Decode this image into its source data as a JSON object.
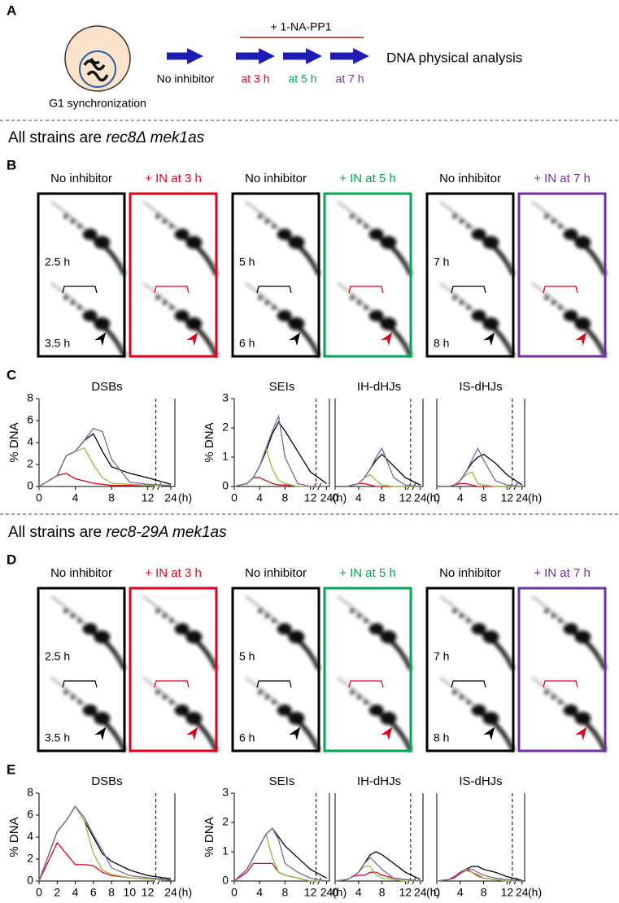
{
  "panel_a": {
    "label": "A",
    "cell_caption": "G1 synchronization",
    "drug": "+ 1-NA-PP1",
    "steps": [
      {
        "text": "No inhibitor",
        "color": "#000000"
      },
      {
        "text": "at 3 h",
        "color": "#e3001b"
      },
      {
        "text": "at 5 h",
        "color": "#00a650"
      },
      {
        "text": "at 7 h",
        "color": "#7030a0"
      }
    ],
    "result": "DNA physical analysis"
  },
  "sections": [
    {
      "prefix": "All strains are ",
      "genotype": "rec8Δ mek1as",
      "blot_label": "B",
      "chart_label": "C",
      "groups": [
        {
          "control": "No inhibitor",
          "treated": "+ IN at 3 h",
          "color": "#e3001b",
          "times": [
            "2.5 h",
            "3.5 h"
          ]
        },
        {
          "control": "No inhibitor",
          "treated": "+ IN at 5 h",
          "color": "#00a650",
          "times": [
            "5 h",
            "6 h"
          ]
        },
        {
          "control": "No inhibitor",
          "treated": "+ IN at 7 h",
          "color": "#7030a0",
          "times": [
            "7 h",
            "8 h"
          ]
        }
      ]
    },
    {
      "prefix": "All strains are ",
      "genotype": "rec8-29A mek1as",
      "blot_label": "D",
      "chart_label": "E",
      "groups": [
        {
          "control": "No inhibitor",
          "treated": "+ IN at 3 h",
          "color": "#e3001b",
          "times": [
            "2.5 h",
            "3.5 h"
          ]
        },
        {
          "control": "No inhibitor",
          "treated": "+ IN at 5 h",
          "color": "#00a650",
          "times": [
            "5 h",
            "6 h"
          ]
        },
        {
          "control": "No inhibitor",
          "treated": "+ IN at 7 h",
          "color": "#7030a0",
          "times": [
            "7 h",
            "8 h"
          ]
        }
      ]
    }
  ],
  "chart_data": [
    {
      "type": "line",
      "title": "DSBs",
      "ylabel": "% DNA",
      "xlabel": "(h)",
      "x": [
        0,
        2,
        3,
        4,
        5,
        6,
        7,
        8,
        10,
        12,
        24
      ],
      "xlim": [
        0,
        24
      ],
      "xticks": [
        0,
        4,
        8,
        12,
        24
      ],
      "ylim": [
        0,
        8
      ],
      "yticks": [
        0,
        2,
        4,
        6,
        8
      ],
      "series": [
        {
          "color": "#000000",
          "values": [
            0,
            1,
            2.8,
            3.2,
            4.2,
            4.8,
            3.2,
            1.8,
            1.2,
            0.8,
            0.2
          ]
        },
        {
          "color": "#e3001b",
          "values": [
            0,
            1,
            1.2,
            0.7,
            0.5,
            0.3,
            0.2,
            0.1,
            0.1,
            0.1,
            0.1
          ]
        },
        {
          "color": "#8cbf3f",
          "values": [
            0,
            1,
            2.8,
            3.2,
            3.5,
            2,
            0.8,
            0.3,
            0.2,
            0.1,
            0.1
          ]
        },
        {
          "color": "#8064a2",
          "values": [
            0,
            1,
            2.8,
            3.2,
            4.2,
            5.3,
            5,
            2.5,
            0.4,
            0.2,
            0.1
          ]
        }
      ]
    },
    {
      "type": "line",
      "title": "SEIs",
      "ylabel": "% DNA",
      "xlabel": "(h)",
      "x": [
        0,
        2,
        3,
        4,
        5,
        6,
        7,
        8,
        10,
        12,
        24
      ],
      "xlim": [
        0,
        24
      ],
      "xticks": [
        0,
        4,
        8,
        12,
        24
      ],
      "ylim": [
        0,
        3
      ],
      "yticks": [
        0,
        1,
        2,
        3
      ],
      "series": [
        {
          "color": "#000000",
          "values": [
            0,
            0.1,
            0.3,
            0.7,
            1.2,
            1.8,
            2.2,
            1.9,
            1.2,
            0.5,
            0.1
          ]
        },
        {
          "color": "#e3001b",
          "values": [
            0,
            0.1,
            0.3,
            0.3,
            0.2,
            0.1,
            0.05,
            0.05,
            0,
            0,
            0
          ]
        },
        {
          "color": "#8cbf3f",
          "values": [
            0,
            0.1,
            0.3,
            0.7,
            1.3,
            0.6,
            0.2,
            0.1,
            0,
            0,
            0
          ]
        },
        {
          "color": "#8064a2",
          "values": [
            0,
            0.1,
            0.3,
            0.7,
            1.3,
            1.9,
            2.4,
            1,
            0.1,
            0,
            0
          ]
        }
      ]
    },
    {
      "type": "line",
      "title": "IH-dHJs",
      "xlabel": "(h)",
      "x": [
        0,
        2,
        3,
        4,
        5,
        6,
        7,
        8,
        10,
        12,
        24
      ],
      "xlim": [
        0,
        24
      ],
      "xticks": [
        0,
        4,
        8,
        12,
        24
      ],
      "ylim": [
        0,
        3
      ],
      "series": [
        {
          "color": "#000000",
          "values": [
            0,
            0,
            0.05,
            0.1,
            0.3,
            0.6,
            0.9,
            1.1,
            0.7,
            0.3,
            0.05
          ]
        },
        {
          "color": "#e3001b",
          "values": [
            0,
            0,
            0.05,
            0.1,
            0.1,
            0.05,
            0,
            0,
            0,
            0,
            0
          ]
        },
        {
          "color": "#8cbf3f",
          "values": [
            0,
            0,
            0.05,
            0.1,
            0.3,
            0.4,
            0.2,
            0.05,
            0,
            0,
            0
          ]
        },
        {
          "color": "#8064a2",
          "values": [
            0,
            0,
            0.05,
            0.1,
            0.3,
            0.6,
            1,
            1.3,
            0.3,
            0.05,
            0
          ]
        }
      ]
    },
    {
      "type": "line",
      "title": "IS-dHJs",
      "xlabel": "(h)",
      "x": [
        0,
        2,
        3,
        4,
        5,
        6,
        7,
        8,
        10,
        12,
        24
      ],
      "xlim": [
        0,
        24
      ],
      "xticks": [
        0,
        4,
        8,
        12,
        24
      ],
      "ylim": [
        0,
        3
      ],
      "series": [
        {
          "color": "#000000",
          "values": [
            0,
            0,
            0.05,
            0.2,
            0.5,
            0.8,
            1,
            1.1,
            0.8,
            0.4,
            0.05
          ]
        },
        {
          "color": "#e3001b",
          "values": [
            0,
            0,
            0.05,
            0.1,
            0.1,
            0.05,
            0,
            0,
            0,
            0,
            0
          ]
        },
        {
          "color": "#8cbf3f",
          "values": [
            0,
            0,
            0.05,
            0.2,
            0.4,
            0.5,
            0.1,
            0.05,
            0,
            0,
            0
          ]
        },
        {
          "color": "#8064a2",
          "values": [
            0,
            0,
            0.05,
            0.2,
            0.5,
            0.9,
            1.3,
            0.9,
            0.2,
            0.05,
            0
          ]
        }
      ]
    },
    {
      "type": "line",
      "title": "DSBs",
      "ylabel": "% DNA",
      "xlabel": "(h)",
      "x": [
        0,
        2,
        3,
        4,
        5,
        6,
        7,
        8,
        10,
        12,
        24
      ],
      "xlim": [
        0,
        24
      ],
      "xticks": [
        0,
        2,
        4,
        6,
        8,
        10,
        12,
        24
      ],
      "ylim": [
        0,
        8
      ],
      "yticks": [
        0,
        2,
        4,
        6,
        8
      ],
      "series": [
        {
          "color": "#000000",
          "values": [
            0,
            4.5,
            5.5,
            6.8,
            5.5,
            4,
            2.5,
            1.8,
            1,
            0.5,
            0.2
          ]
        },
        {
          "color": "#e3001b",
          "values": [
            0,
            3.5,
            2.5,
            1.5,
            1.5,
            1.4,
            0.8,
            0.5,
            0.3,
            0.2,
            0.1
          ]
        },
        {
          "color": "#8cbf3f",
          "values": [
            0,
            4.5,
            5.5,
            6.8,
            5.5,
            2.5,
            1,
            0.6,
            0.3,
            0.2,
            0.1
          ]
        },
        {
          "color": "#8064a2",
          "values": [
            0,
            4.5,
            5.5,
            6.8,
            5.8,
            4.2,
            2.8,
            1.2,
            0.5,
            0.3,
            0.1
          ]
        }
      ]
    },
    {
      "type": "line",
      "title": "SEIs",
      "ylabel": "% DNA",
      "xlabel": "(h)",
      "x": [
        0,
        2,
        3,
        4,
        5,
        6,
        7,
        8,
        10,
        12,
        24
      ],
      "xlim": [
        0,
        24
      ],
      "xticks": [
        0,
        4,
        8,
        12,
        24
      ],
      "ylim": [
        0,
        3
      ],
      "yticks": [
        0,
        1,
        2,
        3
      ],
      "series": [
        {
          "color": "#000000",
          "values": [
            0,
            0.4,
            0.8,
            1.2,
            1.6,
            1.8,
            1.5,
            1.2,
            0.8,
            0.4,
            0.1
          ]
        },
        {
          "color": "#e3001b",
          "values": [
            0,
            0.3,
            0.6,
            0.6,
            0.6,
            0.6,
            0.3,
            0.2,
            0.1,
            0,
            0
          ]
        },
        {
          "color": "#8cbf3f",
          "values": [
            0,
            0.4,
            0.8,
            1.2,
            1.6,
            0.8,
            0.3,
            0.2,
            0.1,
            0,
            0
          ]
        },
        {
          "color": "#8064a2",
          "values": [
            0,
            0.4,
            0.8,
            1.2,
            1.6,
            1.8,
            1.4,
            0.6,
            0.3,
            0.1,
            0
          ]
        }
      ]
    },
    {
      "type": "line",
      "title": "IH-dHJs",
      "xlabel": "(h)",
      "x": [
        0,
        2,
        3,
        4,
        5,
        6,
        7,
        8,
        10,
        12,
        24
      ],
      "xlim": [
        0,
        24
      ],
      "xticks": [
        0,
        4,
        8,
        12,
        24
      ],
      "ylim": [
        0,
        3
      ],
      "series": [
        {
          "color": "#000000",
          "values": [
            0,
            0.05,
            0.15,
            0.3,
            0.6,
            0.9,
            1,
            0.9,
            0.6,
            0.3,
            0.05
          ]
        },
        {
          "color": "#e3001b",
          "values": [
            0,
            0.05,
            0.15,
            0.2,
            0.2,
            0.3,
            0.3,
            0.2,
            0.1,
            0.05,
            0
          ]
        },
        {
          "color": "#8cbf3f",
          "values": [
            0,
            0.05,
            0.15,
            0.3,
            0.5,
            0.5,
            0.2,
            0.1,
            0.05,
            0,
            0
          ]
        },
        {
          "color": "#8064a2",
          "values": [
            0,
            0.05,
            0.15,
            0.3,
            0.6,
            0.8,
            0.6,
            0.4,
            0.1,
            0.05,
            0
          ]
        }
      ]
    },
    {
      "type": "line",
      "title": "IS-dHJs",
      "xlabel": "(h)",
      "x": [
        0,
        2,
        3,
        4,
        5,
        6,
        7,
        8,
        10,
        12,
        24
      ],
      "xlim": [
        0,
        24
      ],
      "xticks": [
        0,
        4,
        8,
        12,
        24
      ],
      "ylim": [
        0,
        3
      ],
      "series": [
        {
          "color": "#000000",
          "values": [
            0,
            0.05,
            0.1,
            0.25,
            0.4,
            0.5,
            0.5,
            0.4,
            0.3,
            0.15,
            0.02
          ]
        },
        {
          "color": "#e3001b",
          "values": [
            0,
            0.05,
            0.15,
            0.3,
            0.4,
            0.3,
            0.2,
            0.1,
            0.05,
            0,
            0
          ]
        },
        {
          "color": "#8cbf3f",
          "values": [
            0,
            0.05,
            0.1,
            0.25,
            0.35,
            0.3,
            0.15,
            0.1,
            0.05,
            0,
            0
          ]
        },
        {
          "color": "#8064a2",
          "values": [
            0,
            0.05,
            0.1,
            0.25,
            0.4,
            0.4,
            0.3,
            0.2,
            0.1,
            0.05,
            0
          ]
        }
      ]
    }
  ]
}
